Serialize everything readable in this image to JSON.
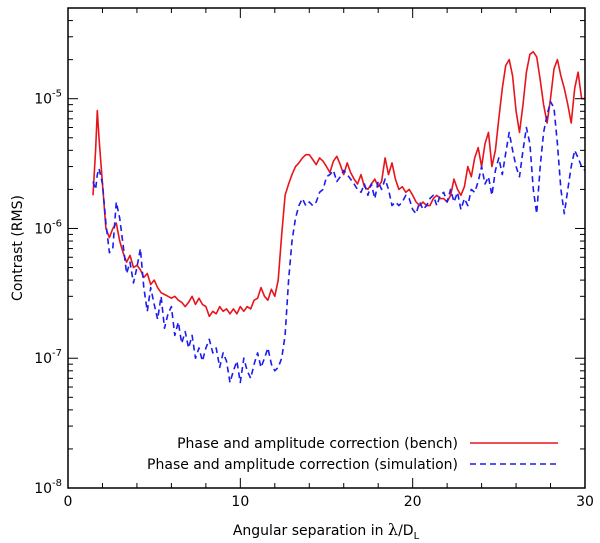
{
  "chart_data": {
    "type": "line",
    "title": "",
    "xlabel": "Angular separation in λ/D",
    "xlabel_main": "Angular separation in ",
    "xlabel_lambda": "λ",
    "xlabel_slash": "/D",
    "xlabel_sub": "L",
    "ylabel": "Contrast (RMS)",
    "xlim": [
      0,
      30
    ],
    "ylim": [
      1e-08,
      5e-05
    ],
    "yscale": "log",
    "grid": false,
    "legend_position": "bottom-right",
    "x_ticks": [
      0,
      10,
      20,
      30
    ],
    "x_tick_labels": [
      "0",
      "10",
      "20",
      "30"
    ],
    "y_ticks": [
      1e-08,
      1e-07,
      1e-06,
      1e-05
    ],
    "y_tick_labels": [
      {
        "base": "10",
        "exp": "-8"
      },
      {
        "base": "10",
        "exp": "-7"
      },
      {
        "base": "10",
        "exp": "-6"
      },
      {
        "base": "10",
        "exp": "-5"
      }
    ],
    "series": [
      {
        "name": "Phase and amplitude correction (bench)",
        "color": "#e8141b",
        "dash": "solid",
        "points": [
          [
            1.45,
            1.8e-06
          ],
          [
            1.6,
            4e-06
          ],
          [
            1.7,
            8.1e-06
          ],
          [
            1.8,
            5e-06
          ],
          [
            2.0,
            2.2e-06
          ],
          [
            2.2,
            1e-06
          ],
          [
            2.4,
            8.5e-07
          ],
          [
            2.6,
            1e-06
          ],
          [
            2.8,
            1.1e-06
          ],
          [
            3.0,
            8e-07
          ],
          [
            3.2,
            6.5e-07
          ],
          [
            3.4,
            5.5e-07
          ],
          [
            3.6,
            6.2e-07
          ],
          [
            3.8,
            5e-07
          ],
          [
            4.0,
            5.2e-07
          ],
          [
            4.2,
            4.8e-07
          ],
          [
            4.4,
            4.2e-07
          ],
          [
            4.6,
            4.5e-07
          ],
          [
            4.8,
            3.7e-07
          ],
          [
            5.0,
            4e-07
          ],
          [
            5.2,
            3.5e-07
          ],
          [
            5.4,
            3.2e-07
          ],
          [
            5.6,
            3.1e-07
          ],
          [
            5.8,
            3e-07
          ],
          [
            6.0,
            2.9e-07
          ],
          [
            6.2,
            3e-07
          ],
          [
            6.4,
            2.8e-07
          ],
          [
            6.6,
            2.7e-07
          ],
          [
            6.8,
            2.5e-07
          ],
          [
            7.0,
            2.7e-07
          ],
          [
            7.2,
            3e-07
          ],
          [
            7.4,
            2.6e-07
          ],
          [
            7.6,
            2.9e-07
          ],
          [
            7.8,
            2.6e-07
          ],
          [
            8.0,
            2.5e-07
          ],
          [
            8.2,
            2.1e-07
          ],
          [
            8.4,
            2.3e-07
          ],
          [
            8.6,
            2.2e-07
          ],
          [
            8.8,
            2.5e-07
          ],
          [
            9.0,
            2.3e-07
          ],
          [
            9.2,
            2.4e-07
          ],
          [
            9.4,
            2.2e-07
          ],
          [
            9.6,
            2.4e-07
          ],
          [
            9.8,
            2.2e-07
          ],
          [
            10.0,
            2.5e-07
          ],
          [
            10.2,
            2.3e-07
          ],
          [
            10.4,
            2.5e-07
          ],
          [
            10.6,
            2.4e-07
          ],
          [
            10.8,
            2.8e-07
          ],
          [
            11.0,
            2.9e-07
          ],
          [
            11.2,
            3.5e-07
          ],
          [
            11.4,
            3e-07
          ],
          [
            11.6,
            2.8e-07
          ],
          [
            11.8,
            3.4e-07
          ],
          [
            12.0,
            3e-07
          ],
          [
            12.2,
            4e-07
          ],
          [
            12.4,
            9e-07
          ],
          [
            12.6,
            1.8e-06
          ],
          [
            12.8,
            2.2e-06
          ],
          [
            13.0,
            2.6e-06
          ],
          [
            13.2,
            3e-06
          ],
          [
            13.4,
            3.2e-06
          ],
          [
            13.6,
            3.5e-06
          ],
          [
            13.8,
            3.7e-06
          ],
          [
            14.0,
            3.7e-06
          ],
          [
            14.2,
            3.4e-06
          ],
          [
            14.4,
            3.1e-06
          ],
          [
            14.6,
            3.5e-06
          ],
          [
            14.8,
            3.3e-06
          ],
          [
            15.0,
            3e-06
          ],
          [
            15.2,
            2.7e-06
          ],
          [
            15.4,
            3.3e-06
          ],
          [
            15.6,
            3.6e-06
          ],
          [
            15.8,
            3.1e-06
          ],
          [
            16.0,
            2.6e-06
          ],
          [
            16.2,
            3.2e-06
          ],
          [
            16.4,
            2.7e-06
          ],
          [
            16.6,
            2.4e-06
          ],
          [
            16.8,
            2.2e-06
          ],
          [
            17.0,
            2.6e-06
          ],
          [
            17.2,
            2.1e-06
          ],
          [
            17.4,
            2e-06
          ],
          [
            17.6,
            2.2e-06
          ],
          [
            17.8,
            2.4e-06
          ],
          [
            18.0,
            2.1e-06
          ],
          [
            18.2,
            2.3e-06
          ],
          [
            18.4,
            3.5e-06
          ],
          [
            18.6,
            2.6e-06
          ],
          [
            18.8,
            3.2e-06
          ],
          [
            19.0,
            2.4e-06
          ],
          [
            19.2,
            2e-06
          ],
          [
            19.4,
            2.1e-06
          ],
          [
            19.6,
            1.9e-06
          ],
          [
            19.8,
            2e-06
          ],
          [
            20.0,
            1.8e-06
          ],
          [
            20.2,
            1.6e-06
          ],
          [
            20.4,
            1.5e-06
          ],
          [
            20.6,
            1.6e-06
          ],
          [
            20.8,
            1.5e-06
          ],
          [
            21.0,
            1.5e-06
          ],
          [
            21.2,
            1.7e-06
          ],
          [
            21.4,
            1.8e-06
          ],
          [
            21.6,
            1.7e-06
          ],
          [
            21.8,
            1.7e-06
          ],
          [
            22.0,
            1.6e-06
          ],
          [
            22.2,
            1.8e-06
          ],
          [
            22.4,
            2.4e-06
          ],
          [
            22.6,
            2e-06
          ],
          [
            22.8,
            1.8e-06
          ],
          [
            23.0,
            2.1e-06
          ],
          [
            23.2,
            3e-06
          ],
          [
            23.4,
            2.5e-06
          ],
          [
            23.6,
            3.5e-06
          ],
          [
            23.8,
            4.2e-06
          ],
          [
            24.0,
            3e-06
          ],
          [
            24.2,
            4.5e-06
          ],
          [
            24.4,
            5.5e-06
          ],
          [
            24.6,
            3e-06
          ],
          [
            24.8,
            4e-06
          ],
          [
            25.0,
            7e-06
          ],
          [
            25.2,
            1.2e-05
          ],
          [
            25.4,
            1.8e-05
          ],
          [
            25.6,
            2e-05
          ],
          [
            25.8,
            1.5e-05
          ],
          [
            26.0,
            8e-06
          ],
          [
            26.2,
            5.5e-06
          ],
          [
            26.4,
            9e-06
          ],
          [
            26.6,
            1.6e-05
          ],
          [
            26.8,
            2.2e-05
          ],
          [
            27.0,
            2.3e-05
          ],
          [
            27.2,
            2.1e-05
          ],
          [
            27.4,
            1.4e-05
          ],
          [
            27.6,
            9e-06
          ],
          [
            27.8,
            6.5e-06
          ],
          [
            28.0,
            1e-05
          ],
          [
            28.2,
            1.7e-05
          ],
          [
            28.4,
            2e-05
          ],
          [
            28.6,
            1.5e-05
          ],
          [
            28.8,
            1.2e-05
          ],
          [
            29.0,
            9e-06
          ],
          [
            29.2,
            6.5e-06
          ],
          [
            29.4,
            1.2e-05
          ],
          [
            29.6,
            1.6e-05
          ],
          [
            29.8,
            1e-05
          ],
          [
            30.0,
            1e-05
          ]
        ]
      },
      {
        "name": "Phase and amplitude correction (simulation)",
        "color": "#1c1cf0",
        "dash": "dashed",
        "points": [
          [
            1.45,
            2.3e-06
          ],
          [
            1.6,
            2e-06
          ],
          [
            1.7,
            2.6e-06
          ],
          [
            1.8,
            2.9e-06
          ],
          [
            2.0,
            2.2e-06
          ],
          [
            2.2,
            1.1e-06
          ],
          [
            2.4,
            6.5e-07
          ],
          [
            2.6,
            7e-07
          ],
          [
            2.8,
            1.6e-06
          ],
          [
            3.0,
            1.2e-06
          ],
          [
            3.2,
            7.5e-07
          ],
          [
            3.4,
            4.5e-07
          ],
          [
            3.6,
            5.5e-07
          ],
          [
            3.8,
            3.8e-07
          ],
          [
            4.0,
            5e-07
          ],
          [
            4.2,
            7e-07
          ],
          [
            4.4,
            3.5e-07
          ],
          [
            4.6,
            2.3e-07
          ],
          [
            4.8,
            3.5e-07
          ],
          [
            5.0,
            2.6e-07
          ],
          [
            5.2,
            2e-07
          ],
          [
            5.4,
            3e-07
          ],
          [
            5.6,
            1.7e-07
          ],
          [
            5.8,
            2.2e-07
          ],
          [
            6.0,
            2.5e-07
          ],
          [
            6.2,
            1.5e-07
          ],
          [
            6.4,
            1.9e-07
          ],
          [
            6.6,
            1.3e-07
          ],
          [
            6.8,
            1.6e-07
          ],
          [
            7.0,
            1.2e-07
          ],
          [
            7.2,
            1.5e-07
          ],
          [
            7.4,
            1e-07
          ],
          [
            7.6,
            1.2e-07
          ],
          [
            7.8,
            9.5e-08
          ],
          [
            8.0,
            1.2e-07
          ],
          [
            8.2,
            1.4e-07
          ],
          [
            8.4,
            1.1e-07
          ],
          [
            8.6,
            1.2e-07
          ],
          [
            8.8,
            8.5e-08
          ],
          [
            9.0,
            1.1e-07
          ],
          [
            9.2,
            9.5e-08
          ],
          [
            9.4,
            6.5e-08
          ],
          [
            9.6,
            8e-08
          ],
          [
            9.8,
            9.5e-08
          ],
          [
            10.0,
            6.5e-08
          ],
          [
            10.2,
            1e-07
          ],
          [
            10.4,
            8e-08
          ],
          [
            10.6,
            7e-08
          ],
          [
            10.8,
            9e-08
          ],
          [
            11.0,
            1.1e-07
          ],
          [
            11.2,
            8.5e-08
          ],
          [
            11.4,
            1e-07
          ],
          [
            11.6,
            1.2e-07
          ],
          [
            11.8,
            9e-08
          ],
          [
            12.0,
            8e-08
          ],
          [
            12.2,
            8.5e-08
          ],
          [
            12.4,
            1e-07
          ],
          [
            12.6,
            1.5e-07
          ],
          [
            12.8,
            4e-07
          ],
          [
            13.0,
            8e-07
          ],
          [
            13.2,
            1.2e-06
          ],
          [
            13.4,
            1.5e-06
          ],
          [
            13.6,
            1.7e-06
          ],
          [
            13.8,
            1.5e-06
          ],
          [
            14.0,
            1.6e-06
          ],
          [
            14.2,
            1.5e-06
          ],
          [
            14.4,
            1.6e-06
          ],
          [
            14.6,
            1.9e-06
          ],
          [
            14.8,
            2e-06
          ],
          [
            15.0,
            2.5e-06
          ],
          [
            15.2,
            2.6e-06
          ],
          [
            15.4,
            2.8e-06
          ],
          [
            15.6,
            2.3e-06
          ],
          [
            15.8,
            2.5e-06
          ],
          [
            16.0,
            2.8e-06
          ],
          [
            16.2,
            2.6e-06
          ],
          [
            16.4,
            2.4e-06
          ],
          [
            16.6,
            2.2e-06
          ],
          [
            16.8,
            2e-06
          ],
          [
            17.0,
            1.9e-06
          ],
          [
            17.2,
            2.2e-06
          ],
          [
            17.4,
            1.8e-06
          ],
          [
            17.6,
            2.2e-06
          ],
          [
            17.8,
            1.7e-06
          ],
          [
            18.0,
            2.3e-06
          ],
          [
            18.2,
            2e-06
          ],
          [
            18.4,
            2.4e-06
          ],
          [
            18.6,
            2e-06
          ],
          [
            18.8,
            1.5e-06
          ],
          [
            19.0,
            1.6e-06
          ],
          [
            19.2,
            1.5e-06
          ],
          [
            19.4,
            1.6e-06
          ],
          [
            19.6,
            1.8e-06
          ],
          [
            19.8,
            1.7e-06
          ],
          [
            20.0,
            1.4e-06
          ],
          [
            20.2,
            1.3e-06
          ],
          [
            20.4,
            1.6e-06
          ],
          [
            20.6,
            1.4e-06
          ],
          [
            20.8,
            1.5e-06
          ],
          [
            21.0,
            1.7e-06
          ],
          [
            21.2,
            1.8e-06
          ],
          [
            21.4,
            1.5e-06
          ],
          [
            21.6,
            1.8e-06
          ],
          [
            21.8,
            1.9e-06
          ],
          [
            22.0,
            1.6e-06
          ],
          [
            22.2,
            2e-06
          ],
          [
            22.4,
            1.6e-06
          ],
          [
            22.6,
            1.9e-06
          ],
          [
            22.8,
            1.4e-06
          ],
          [
            23.0,
            1.7e-06
          ],
          [
            23.2,
            1.5e-06
          ],
          [
            23.4,
            2e-06
          ],
          [
            23.6,
            1.9e-06
          ],
          [
            23.8,
            2.3e-06
          ],
          [
            24.0,
            3e-06
          ],
          [
            24.2,
            2.2e-06
          ],
          [
            24.4,
            2.5e-06
          ],
          [
            24.6,
            1.8e-06
          ],
          [
            24.8,
            2.8e-06
          ],
          [
            25.0,
            3.5e-06
          ],
          [
            25.2,
            2.6e-06
          ],
          [
            25.4,
            3.8e-06
          ],
          [
            25.6,
            5.5e-06
          ],
          [
            25.8,
            4e-06
          ],
          [
            26.0,
            3e-06
          ],
          [
            26.2,
            2.5e-06
          ],
          [
            26.4,
            4e-06
          ],
          [
            26.6,
            6e-06
          ],
          [
            26.8,
            4.5e-06
          ],
          [
            27.0,
            2e-06
          ],
          [
            27.2,
            1.3e-06
          ],
          [
            27.4,
            3e-06
          ],
          [
            27.6,
            5.5e-06
          ],
          [
            27.8,
            7.5e-06
          ],
          [
            28.0,
            9.5e-06
          ],
          [
            28.2,
            8.5e-06
          ],
          [
            28.4,
            4.5e-06
          ],
          [
            28.6,
            2e-06
          ],
          [
            28.8,
            1.3e-06
          ],
          [
            29.0,
            2e-06
          ],
          [
            29.2,
            3e-06
          ],
          [
            29.4,
            4e-06
          ],
          [
            29.6,
            3.5e-06
          ],
          [
            29.8,
            3e-06
          ],
          [
            30.0,
            2.8e-06
          ]
        ]
      }
    ]
  }
}
